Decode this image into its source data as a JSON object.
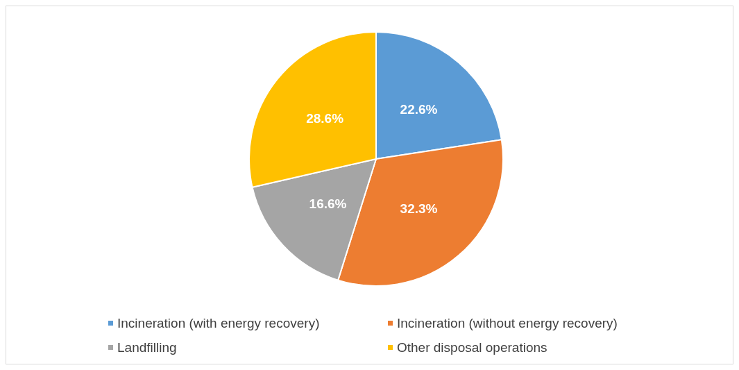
{
  "chart_data": {
    "type": "pie",
    "categories": [
      "Incineration (with energy recovery)",
      "Incineration (without energy recovery)",
      "Landfilling",
      "Other disposal operations"
    ],
    "values": [
      22.6,
      32.3,
      16.6,
      28.6
    ],
    "colors": [
      "#5b9bd5",
      "#ed7d31",
      "#a5a5a5",
      "#ffc000"
    ],
    "value_labels": [
      "22.6%",
      "32.3%",
      "16.6%",
      "28.6%"
    ],
    "legend": "bottom"
  }
}
